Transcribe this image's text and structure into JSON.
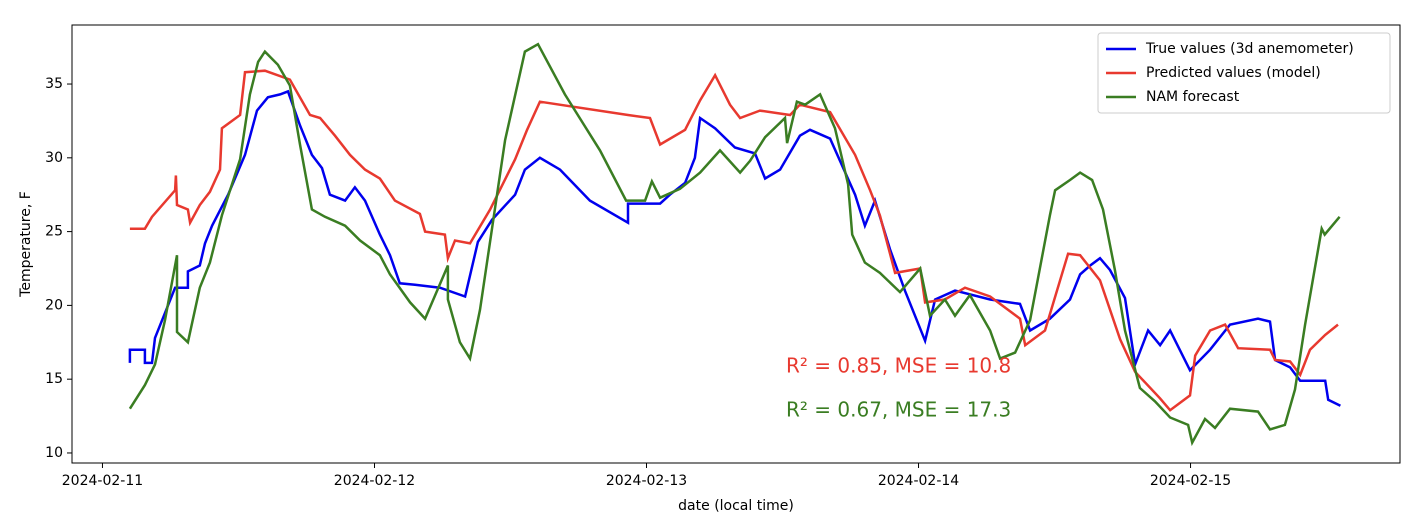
{
  "chart_data": {
    "type": "line",
    "x_label": "date (local time)",
    "y_label": "Temperature, F",
    "xlim": [
      -0.112,
      4.77
    ],
    "ylim": [
      9.32,
      39.0
    ],
    "xticks": [
      {
        "value": 0,
        "label": "2024-02-11"
      },
      {
        "value": 1,
        "label": "2024-02-12"
      },
      {
        "value": 2,
        "label": "2024-02-13"
      },
      {
        "value": 3,
        "label": "2024-02-14"
      },
      {
        "value": 4,
        "label": "2024-02-15"
      }
    ],
    "yticks": [
      10,
      15,
      20,
      25,
      30,
      35
    ],
    "legend": "upper right",
    "annotations": [
      {
        "text": "R² = 0.85, MSE = 10.8",
        "color": "#e8392f"
      },
      {
        "text": "R² = 0.67, MSE = 17.3",
        "color": "#3a7d22"
      }
    ],
    "series": [
      {
        "name": "True values (3d anemometer)",
        "color": "#0000ee",
        "x": [
          0.101,
          0.101,
          0.156,
          0.156,
          0.182,
          0.193,
          0.267,
          0.314,
          0.314,
          0.358,
          0.377,
          0.403,
          0.462,
          0.524,
          0.568,
          0.608,
          0.653,
          0.682,
          0.726,
          0.77,
          0.807,
          0.836,
          0.892,
          0.928,
          0.965,
          1.02,
          1.057,
          1.093,
          1.149,
          1.241,
          1.333,
          1.38,
          1.432,
          1.517,
          1.553,
          1.608,
          1.682,
          1.792,
          1.932,
          1.932,
          2.05,
          2.086,
          2.142,
          2.178,
          2.197,
          2.252,
          2.325,
          2.399,
          2.436,
          2.491,
          2.564,
          2.601,
          2.675,
          2.767,
          2.803,
          2.84,
          2.895,
          2.95,
          3.024,
          3.061,
          3.134,
          3.263,
          3.373,
          3.41,
          3.483,
          3.557,
          3.594,
          3.631,
          3.667,
          3.704,
          3.759,
          3.796,
          3.844,
          3.888,
          3.925,
          3.998,
          4.072,
          4.145,
          4.248,
          4.292,
          4.311,
          4.366,
          4.403,
          4.495,
          4.506,
          4.551
        ],
        "values": [
          16.1,
          17.0,
          17.0,
          16.1,
          16.1,
          17.8,
          21.2,
          21.2,
          22.3,
          22.7,
          24.2,
          25.4,
          27.5,
          30.2,
          33.2,
          34.1,
          34.3,
          34.5,
          32.2,
          30.2,
          29.3,
          27.5,
          27.1,
          28.0,
          27.1,
          24.8,
          23.4,
          21.5,
          21.4,
          21.2,
          20.6,
          24.3,
          25.8,
          27.5,
          29.2,
          30.0,
          29.2,
          27.1,
          25.6,
          26.9,
          26.9,
          27.5,
          28.3,
          30.0,
          32.7,
          32.0,
          30.7,
          30.3,
          28.6,
          29.2,
          31.5,
          31.9,
          31.3,
          27.5,
          25.4,
          27.1,
          23.8,
          21.0,
          17.6,
          20.4,
          21.0,
          20.4,
          20.1,
          18.3,
          19.1,
          20.4,
          22.1,
          22.7,
          23.2,
          22.4,
          20.5,
          16.0,
          18.3,
          17.3,
          18.3,
          15.6,
          17.0,
          18.7,
          19.1,
          18.9,
          16.3,
          15.8,
          14.9,
          14.9,
          13.6,
          13.2
        ]
      },
      {
        "name": "Predicted values (model)",
        "color": "#e8392f",
        "x": [
          0.101,
          0.156,
          0.182,
          0.267,
          0.27,
          0.274,
          0.314,
          0.322,
          0.358,
          0.395,
          0.432,
          0.439,
          0.506,
          0.524,
          0.597,
          0.689,
          0.763,
          0.8,
          0.855,
          0.91,
          0.965,
          1.02,
          1.075,
          1.167,
          1.186,
          1.259,
          1.27,
          1.296,
          1.351,
          1.425,
          1.517,
          1.561,
          1.608,
          1.932,
          2.013,
          2.05,
          2.142,
          2.197,
          2.252,
          2.307,
          2.344,
          2.417,
          2.528,
          2.564,
          2.675,
          2.767,
          2.822,
          2.858,
          2.914,
          3.006,
          3.024,
          3.097,
          3.171,
          3.263,
          3.373,
          3.392,
          3.465,
          3.55,
          3.594,
          3.667,
          3.741,
          3.796,
          3.888,
          3.925,
          3.998,
          4.017,
          4.072,
          4.127,
          4.175,
          4.292,
          4.311,
          4.366,
          4.403,
          4.439,
          4.495,
          4.542
        ],
        "values": [
          25.2,
          25.2,
          26.0,
          27.8,
          28.8,
          26.8,
          26.5,
          25.6,
          26.8,
          27.7,
          29.2,
          32.0,
          32.9,
          35.8,
          35.9,
          35.3,
          32.9,
          32.7,
          31.5,
          30.2,
          29.2,
          28.6,
          27.1,
          26.2,
          25.0,
          24.8,
          23.2,
          24.4,
          24.2,
          26.5,
          29.9,
          31.9,
          33.8,
          32.9,
          32.7,
          30.9,
          31.9,
          33.9,
          35.6,
          33.6,
          32.7,
          33.2,
          32.9,
          33.6,
          33.1,
          30.2,
          27.8,
          26.1,
          22.2,
          22.5,
          20.2,
          20.4,
          21.2,
          20.6,
          19.1,
          17.3,
          18.3,
          23.5,
          23.4,
          21.7,
          17.7,
          15.5,
          13.7,
          12.9,
          13.9,
          16.6,
          18.3,
          18.7,
          17.1,
          17.0,
          16.3,
          16.2,
          15.3,
          17.0,
          18.0,
          18.7
        ]
      },
      {
        "name": "NAM forecast",
        "color": "#3a7d22",
        "x": [
          0.101,
          0.156,
          0.193,
          0.23,
          0.274,
          0.274,
          0.314,
          0.358,
          0.395,
          0.439,
          0.506,
          0.542,
          0.572,
          0.597,
          0.645,
          0.689,
          0.726,
          0.77,
          0.818,
          0.892,
          0.947,
          1.02,
          1.057,
          1.131,
          1.186,
          1.27,
          1.27,
          1.314,
          1.351,
          1.388,
          1.48,
          1.553,
          1.601,
          1.7,
          1.829,
          1.925,
          1.995,
          2.02,
          2.05,
          2.123,
          2.197,
          2.27,
          2.344,
          2.381,
          2.436,
          2.509,
          2.517,
          2.553,
          2.583,
          2.638,
          2.693,
          2.741,
          2.756,
          2.803,
          2.858,
          2.932,
          3.006,
          3.042,
          3.097,
          3.134,
          3.189,
          3.263,
          3.3,
          3.355,
          3.41,
          3.483,
          3.502,
          3.557,
          3.594,
          3.638,
          3.678,
          3.722,
          3.759,
          3.814,
          3.869,
          3.925,
          3.991,
          4.006,
          4.053,
          4.09,
          4.145,
          4.248,
          4.292,
          4.347,
          4.384,
          4.421,
          4.482,
          4.493,
          4.548
        ],
        "values": [
          13.0,
          14.6,
          16.0,
          19.0,
          23.4,
          18.2,
          17.5,
          21.2,
          22.9,
          26.1,
          29.9,
          34.3,
          36.5,
          37.2,
          36.3,
          34.9,
          30.9,
          26.5,
          26.0,
          25.4,
          24.4,
          23.4,
          22.1,
          20.2,
          19.1,
          22.7,
          20.4,
          17.5,
          16.4,
          19.7,
          31.2,
          37.2,
          37.7,
          34.3,
          30.5,
          27.1,
          27.1,
          28.4,
          27.3,
          27.9,
          29.0,
          30.5,
          29.0,
          29.8,
          31.4,
          32.7,
          31.0,
          33.8,
          33.6,
          34.3,
          32.0,
          28.2,
          24.8,
          22.9,
          22.2,
          20.9,
          22.5,
          19.3,
          20.4,
          19.3,
          20.7,
          18.3,
          16.4,
          16.8,
          19.0,
          26.1,
          27.8,
          28.5,
          29.0,
          28.5,
          26.5,
          22.4,
          18.3,
          14.4,
          13.5,
          12.4,
          11.9,
          10.7,
          12.3,
          11.7,
          13.0,
          12.8,
          11.6,
          11.9,
          14.3,
          18.7,
          25.2,
          24.8,
          26.0
        ]
      }
    ]
  }
}
